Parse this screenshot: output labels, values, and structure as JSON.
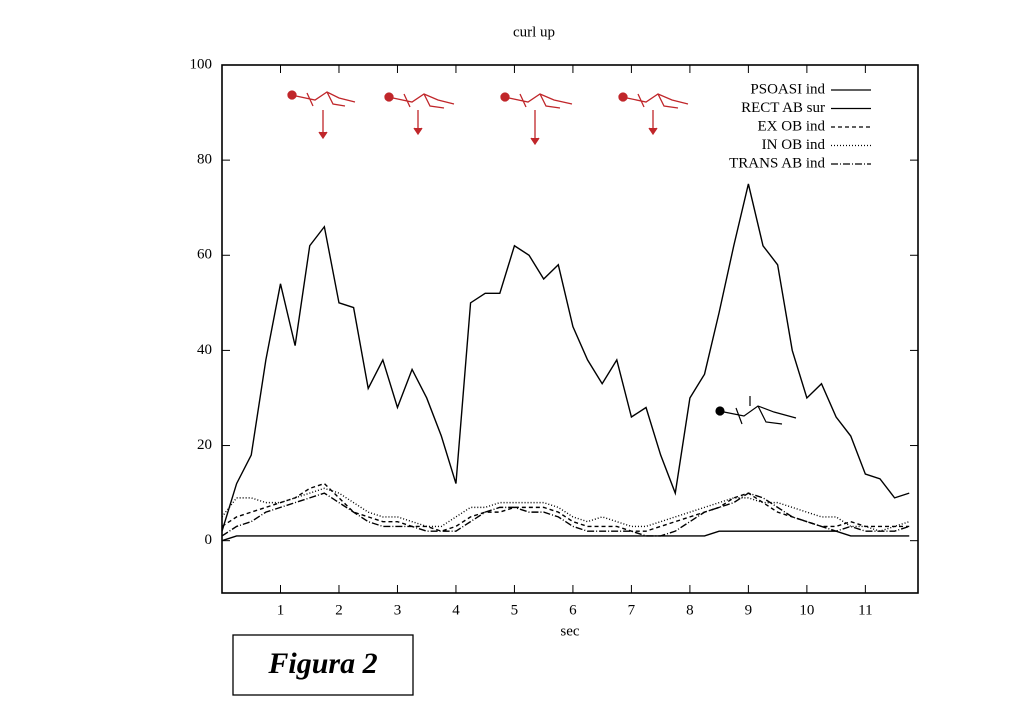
{
  "chart_data": {
    "type": "line",
    "title": "curl up",
    "x_label": "sec",
    "x": [
      0,
      0.25,
      0.5,
      0.75,
      1,
      1.25,
      1.5,
      1.75,
      2,
      2.25,
      2.5,
      2.75,
      3,
      3.25,
      3.5,
      3.75,
      4,
      4.25,
      4.5,
      4.75,
      5,
      5.25,
      5.5,
      5.75,
      6,
      6.25,
      6.5,
      6.75,
      7,
      7.25,
      7.5,
      7.75,
      8,
      8.25,
      8.5,
      8.75,
      9,
      9.25,
      9.5,
      9.75,
      10,
      10.25,
      10.5,
      10.75,
      11,
      11.25,
      11.5,
      11.75
    ],
    "series": [
      {
        "name": "PSOASI ind",
        "color": "#000000",
        "dash": "none",
        "values": [
          0,
          1,
          1,
          1,
          1,
          1,
          1,
          1,
          1,
          1,
          1,
          1,
          1,
          1,
          1,
          1,
          1,
          1,
          1,
          1,
          1,
          1,
          1,
          1,
          1,
          1,
          1,
          1,
          1,
          1,
          1,
          1,
          1,
          1,
          2,
          2,
          2,
          2,
          2,
          2,
          2,
          2,
          2,
          1,
          1,
          1,
          1,
          1
        ]
      },
      {
        "name": "RECT AB sur",
        "color": "#000000",
        "dash": "none",
        "values": [
          2,
          12,
          18,
          38,
          54,
          41,
          62,
          66,
          50,
          49,
          32,
          38,
          28,
          36,
          30,
          22,
          12,
          50,
          52,
          52,
          62,
          60,
          55,
          58,
          45,
          38,
          33,
          38,
          26,
          28,
          18,
          10,
          30,
          35,
          48,
          62,
          75,
          62,
          58,
          40,
          30,
          33,
          26,
          22,
          14,
          13,
          9,
          10
        ]
      },
      {
        "name": "EX OB ind",
        "color": "#000000",
        "dash": "4,3",
        "values": [
          3,
          5,
          6,
          7,
          8,
          9,
          11,
          12,
          9,
          6,
          5,
          4,
          4,
          3,
          3,
          2,
          3,
          5,
          6,
          6,
          7,
          7,
          7,
          6,
          4,
          3,
          3,
          3,
          2,
          2,
          3,
          4,
          5,
          6,
          7,
          9,
          10,
          8,
          6,
          5,
          4,
          3,
          3,
          4,
          3,
          3,
          3,
          3
        ]
      },
      {
        "name": "IN OB ind",
        "color": "#000000",
        "dash": "1,2",
        "values": [
          5,
          9,
          9,
          8,
          8,
          9,
          10,
          11,
          10,
          8,
          6,
          5,
          5,
          4,
          3,
          3,
          5,
          7,
          7,
          8,
          8,
          8,
          8,
          7,
          5,
          4,
          5,
          4,
          3,
          3,
          4,
          5,
          6,
          7,
          8,
          9,
          9,
          8,
          8,
          7,
          6,
          5,
          5,
          3,
          3,
          2,
          3,
          4
        ]
      },
      {
        "name": "TRANS AB ind",
        "color": "#000000",
        "dash": "7,2,1,2",
        "values": [
          1,
          3,
          4,
          6,
          7,
          8,
          9,
          10,
          8,
          6,
          4,
          3,
          3,
          3,
          2,
          2,
          2,
          4,
          6,
          7,
          7,
          6,
          6,
          5,
          3,
          2,
          2,
          2,
          2,
          1,
          1,
          2,
          4,
          6,
          7,
          8,
          10,
          9,
          7,
          5,
          4,
          3,
          2,
          3,
          2,
          2,
          2,
          3
        ]
      }
    ],
    "xlim": [
      0,
      11.9
    ],
    "ylim": [
      -11,
      100
    ],
    "xticks": [
      1,
      2,
      3,
      4,
      5,
      6,
      7,
      8,
      9,
      10,
      11
    ],
    "yticks": [
      0,
      20,
      40,
      60,
      80,
      100
    ],
    "legend": "top-right"
  },
  "caption": "Figura 2"
}
